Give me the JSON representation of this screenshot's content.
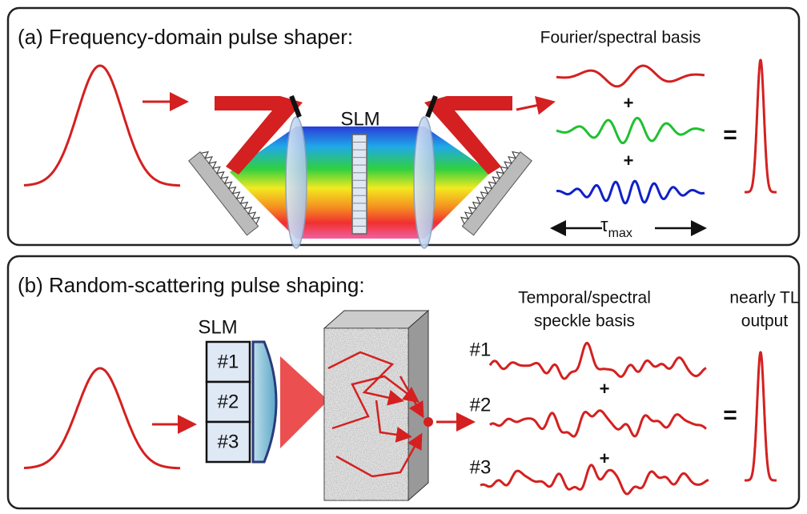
{
  "panel_a": {
    "title": "(a) Frequency-domain pulse shaper:",
    "basis_label": "Fourier/spectral basis",
    "slm": "SLM",
    "plus_1": "+",
    "plus_2": "+",
    "equals": "=",
    "tau": "τ",
    "tau_sub": "max"
  },
  "panel_b": {
    "title": "(b) Random-scattering pulse shaping:",
    "basis_label": [
      "Temporal/spectral",
      "speckle basis"
    ],
    "output_label": [
      "nearly TL",
      "output"
    ],
    "slm": "SLM",
    "slm_cells": [
      "#1",
      "#2",
      "#3"
    ],
    "wave_labels": [
      "#1",
      "#2",
      "#3"
    ],
    "plus_1": "+",
    "plus_2": "+",
    "equals": "="
  }
}
